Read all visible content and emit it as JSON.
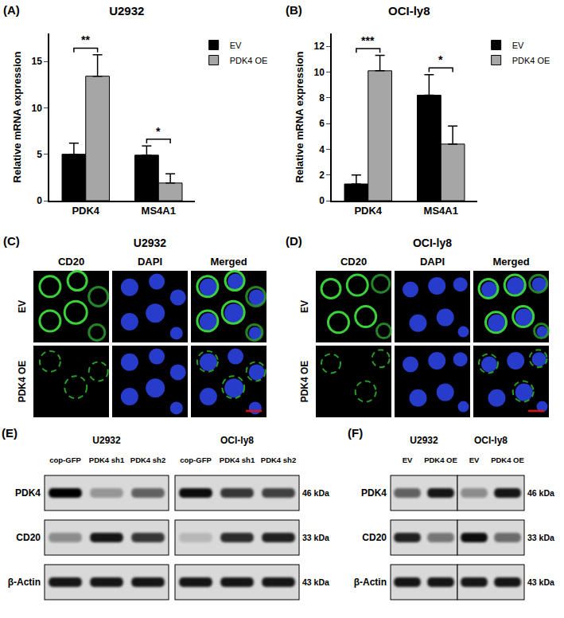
{
  "chart_data": [
    {
      "panel_label": "(A)",
      "type": "bar",
      "title": "U2932",
      "y_label": "Relative mRNA expression",
      "categories": [
        "PDK4",
        "MS4A1"
      ],
      "series": [
        {
          "name": "EV",
          "color": "#000000",
          "values": [
            5.0,
            4.9
          ],
          "error": [
            1.2,
            1.0
          ]
        },
        {
          "name": "PDK4 OE",
          "color": "#a6a6a6",
          "values": [
            13.4,
            1.9
          ],
          "error": [
            2.3,
            1.0
          ]
        }
      ],
      "ylim": [
        0,
        18
      ],
      "yticks": [
        0,
        5,
        10,
        15
      ],
      "grid": false,
      "legend": "upper right",
      "annotations": [
        {
          "category": "PDK4",
          "text": "**"
        },
        {
          "category": "MS4A1",
          "text": "*"
        }
      ]
    },
    {
      "panel_label": "(B)",
      "type": "bar",
      "title": "OCI-ly8",
      "y_label": "Relative mRNA expression",
      "categories": [
        "PDK4",
        "MS4A1"
      ],
      "series": [
        {
          "name": "EV",
          "color": "#000000",
          "values": [
            1.3,
            8.2
          ],
          "error": [
            0.7,
            1.6
          ]
        },
        {
          "name": "PDK4 OE",
          "color": "#a6a6a6",
          "values": [
            10.1,
            4.4
          ],
          "error": [
            1.2,
            1.4
          ]
        }
      ],
      "ylim": [
        0,
        13
      ],
      "yticks": [
        0,
        2,
        4,
        6,
        8,
        10,
        12
      ],
      "grid": false,
      "legend": "upper right",
      "annotations": [
        {
          "category": "PDK4",
          "text": "***"
        },
        {
          "category": "MS4A1",
          "text": "*"
        }
      ]
    }
  ],
  "images": [
    {
      "panel_label": "(C)",
      "title": "U2932",
      "columns": [
        "CD20",
        "DAPI",
        "Merged"
      ],
      "rows": [
        "EV",
        "PDK4 OE"
      ]
    },
    {
      "panel_label": "(D)",
      "title": "OCI-ly8",
      "columns": [
        "CD20",
        "DAPI",
        "Merged"
      ],
      "rows": [
        "EV",
        "PDK4 OE"
      ]
    }
  ],
  "blots": [
    {
      "panel_label": "(E)",
      "groups": [
        {
          "name": "U2932",
          "lanes": [
            "cop-GFP",
            "PDK4 sh1",
            "PDK4 sh2"
          ]
        },
        {
          "name": "OCI-ly8",
          "lanes": [
            "cop-GFP",
            "PDK4 sh1",
            "PDK4 sh2"
          ]
        }
      ],
      "rows": [
        {
          "name": "PDK4",
          "size": "46 kDa",
          "intensity": [
            [
              1.0,
              0.3,
              0.55
            ],
            [
              0.95,
              0.75,
              0.7
            ]
          ]
        },
        {
          "name": "CD20",
          "size": "33 kDa",
          "intensity": [
            [
              0.35,
              0.9,
              0.75
            ],
            [
              0.15,
              0.8,
              0.85
            ]
          ]
        },
        {
          "name": "β-Actin",
          "size": "43 kDa",
          "intensity": [
            [
              0.9,
              0.9,
              0.9
            ],
            [
              0.9,
              0.9,
              0.9
            ]
          ]
        }
      ]
    },
    {
      "panel_label": "(F)",
      "groups": [
        {
          "name": "U2932",
          "lanes": [
            "EV",
            "PDK4 OE"
          ]
        },
        {
          "name": "OCI-ly8",
          "lanes": [
            "EV",
            "PDK4 OE"
          ]
        }
      ],
      "rows": [
        {
          "name": "PDK4",
          "size": "46 kDa",
          "intensity": [
            [
              0.55,
              0.9
            ],
            [
              0.35,
              0.9
            ]
          ]
        },
        {
          "name": "CD20",
          "size": "33 kDa",
          "intensity": [
            [
              0.85,
              0.45
            ],
            [
              0.95,
              0.5
            ]
          ]
        },
        {
          "name": "β-Actin",
          "size": "43 kDa",
          "intensity": [
            [
              0.9,
              0.9
            ],
            [
              0.9,
              0.9
            ]
          ]
        }
      ]
    }
  ]
}
